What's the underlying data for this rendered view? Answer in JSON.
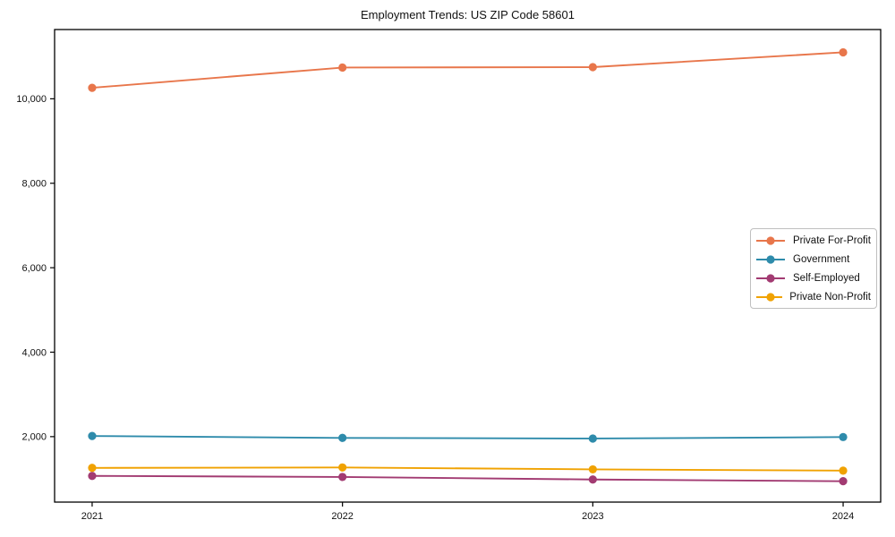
{
  "chart_data": {
    "type": "line",
    "title": "Employment Trends: US ZIP Code 58601",
    "x": [
      2021,
      2022,
      2023,
      2024
    ],
    "series": [
      {
        "name": "Private For-Profit",
        "color": "#e8764b",
        "values": [
          10260,
          10740,
          10750,
          11100
        ]
      },
      {
        "name": "Government",
        "color": "#2e8bab",
        "values": [
          2015,
          1970,
          1955,
          1990
        ]
      },
      {
        "name": "Self-Employed",
        "color": "#a23b72",
        "values": [
          1070,
          1045,
          985,
          945
        ]
      },
      {
        "name": "Private Non-Profit",
        "color": "#f0a202",
        "values": [
          1260,
          1270,
          1225,
          1195
        ]
      }
    ],
    "xlim": [
      2020.85,
      2024.15
    ],
    "ylim": [
      450,
      11640
    ],
    "yticks": [
      2000,
      4000,
      6000,
      8000,
      10000
    ],
    "ytick_labels": [
      "2,000",
      "4,000",
      "6,000",
      "8,000",
      "10,000"
    ],
    "xtick_labels": [
      "2021",
      "2022",
      "2023",
      "2024"
    ],
    "grid": false,
    "legend_position": "center-right",
    "axis_color": "#000000",
    "background_color": "#ffffff"
  }
}
